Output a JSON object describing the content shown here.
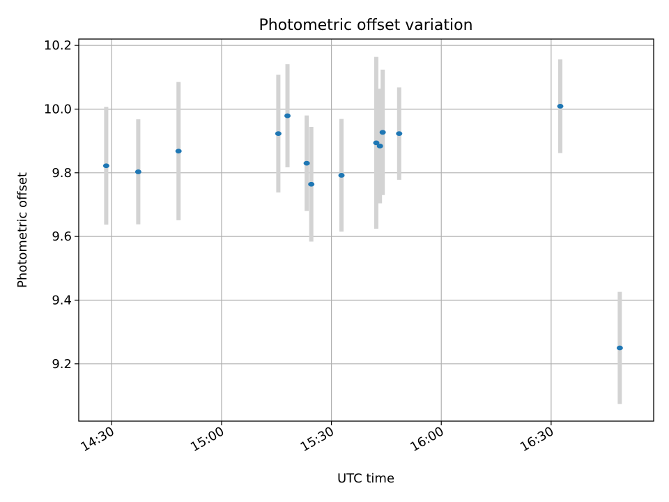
{
  "chart_data": {
    "type": "scatter",
    "title": "Photometric offset variation",
    "xlabel": "UTC time",
    "ylabel": "Photometric offset",
    "x_ticks": [
      "14:30",
      "15:00",
      "15:30",
      "16:00",
      "16:30"
    ],
    "y_ticks": [
      "9.2",
      "9.4",
      "9.6",
      "9.8",
      "10.0",
      "10.2"
    ],
    "xlim": [
      "14:21",
      "16:58"
    ],
    "ylim": [
      9.02,
      10.22
    ],
    "grid": true,
    "marker_color": "#1f77b4",
    "errorbar_color": "#d3d3d3",
    "points": [
      {
        "x": "14:28:30",
        "y": 9.822,
        "err": 0.185
      },
      {
        "x": "14:37:15",
        "y": 9.803,
        "err": 0.165
      },
      {
        "x": "14:48:15",
        "y": 9.868,
        "err": 0.217
      },
      {
        "x": "15:15:30",
        "y": 9.923,
        "err": 0.185
      },
      {
        "x": "15:18:00",
        "y": 9.979,
        "err": 0.162
      },
      {
        "x": "15:23:15",
        "y": 9.83,
        "err": 0.15
      },
      {
        "x": "15:24:30",
        "y": 9.764,
        "err": 0.18
      },
      {
        "x": "15:32:45",
        "y": 9.792,
        "err": 0.177
      },
      {
        "x": "15:42:15",
        "y": 9.894,
        "err": 0.27
      },
      {
        "x": "15:43:15",
        "y": 9.884,
        "err": 0.18
      },
      {
        "x": "15:44:00",
        "y": 9.927,
        "err": 0.197
      },
      {
        "x": "15:48:30",
        "y": 9.923,
        "err": 0.145
      },
      {
        "x": "16:32:30",
        "y": 10.009,
        "err": 0.147
      },
      {
        "x": "16:48:45",
        "y": 9.25,
        "err": 0.176
      }
    ]
  }
}
